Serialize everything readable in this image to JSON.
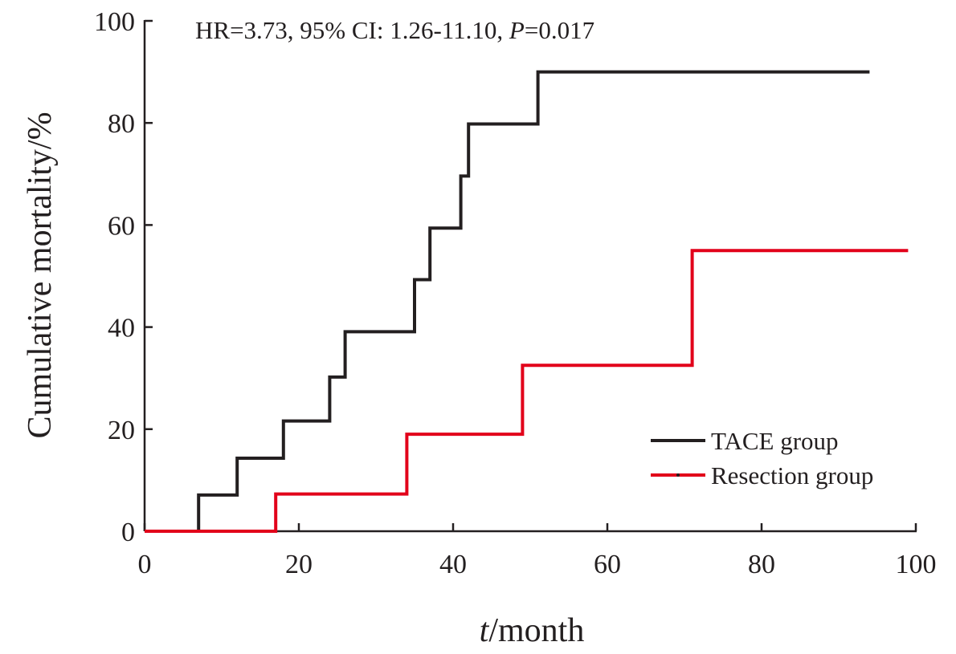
{
  "chart_data": {
    "type": "line",
    "subtype": "kaplan-meier-step",
    "annotation": {
      "prefix": "HR=3.73, 95% CI: 1.26-11.10, ",
      "p_symbol": "P",
      "p_value": "=0.017"
    },
    "xlabel": {
      "italic": "t",
      "rest": "/month"
    },
    "ylabel": "Cumulative mortality/%",
    "xlim": [
      0,
      100
    ],
    "ylim": [
      0,
      100
    ],
    "x_ticks": [
      0,
      20,
      40,
      60,
      80,
      100
    ],
    "y_ticks": [
      0,
      20,
      40,
      60,
      80,
      100
    ],
    "grid": false,
    "legend_position": "bottom-right",
    "series": [
      {
        "name": "TACE group",
        "color": "#231f20",
        "steps": [
          [
            0,
            0
          ],
          [
            7,
            7.1
          ],
          [
            12,
            14.3
          ],
          [
            18,
            21.6
          ],
          [
            24,
            30.2
          ],
          [
            26,
            39.1
          ],
          [
            35,
            49.3
          ],
          [
            37,
            59.4
          ],
          [
            41,
            69.6
          ],
          [
            42,
            79.8
          ],
          [
            51,
            90
          ]
        ],
        "x_end": 94
      },
      {
        "name": "Resection group",
        "color": "#e2001a",
        "steps": [
          [
            0,
            0
          ],
          [
            17,
            7.3
          ],
          [
            34,
            19
          ],
          [
            49,
            32.5
          ],
          [
            71,
            55
          ]
        ],
        "x_end": 99
      }
    ]
  }
}
